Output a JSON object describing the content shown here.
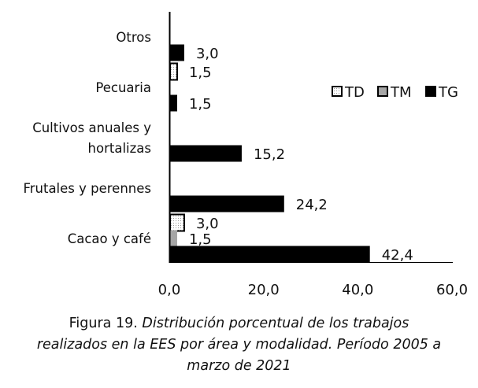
{
  "chart_data": {
    "type": "bar",
    "orientation": "horizontal",
    "categories": [
      "Otros",
      "Pecuaria",
      "Cultivos anuales y hortalizas",
      "Frutales y perennes",
      "Cacao y café"
    ],
    "category_lines": [
      [
        "Otros"
      ],
      [
        "Pecuaria"
      ],
      [
        "Cultivos anuales y",
        "hortalizas"
      ],
      [
        "Frutales y perennes"
      ],
      [
        "Cacao y café"
      ]
    ],
    "series": [
      {
        "name": "TD",
        "values": [
          null,
          1.5,
          null,
          null,
          3.0
        ],
        "labels": [
          "",
          "1,5",
          "",
          "",
          "3,0"
        ],
        "color": "#ffffff",
        "pattern": "dotted"
      },
      {
        "name": "TM",
        "values": [
          null,
          null,
          null,
          null,
          1.5
        ],
        "labels": [
          "",
          "",
          "",
          "",
          "1,5"
        ],
        "color": "#a6a6a6"
      },
      {
        "name": "TG",
        "values": [
          3.0,
          1.5,
          15.2,
          24.2,
          42.4
        ],
        "labels": [
          "3,0",
          "1,5",
          "15,2",
          "24,2",
          "42,4"
        ],
        "color": "#000000"
      }
    ],
    "xlim": [
      0,
      60
    ],
    "xticks": [
      0,
      20,
      40,
      60
    ],
    "xtick_labels": [
      "0,0",
      "20,0",
      "40,0",
      "60,0"
    ],
    "legend": "top-right",
    "grid": false
  },
  "caption": {
    "prefix": "Figura 19.",
    "line1": "Distribución porcentual de los trabajos",
    "line2": "realizados en la EES por área y modalidad. Período 2005 a",
    "line3": "marzo de 2021"
  }
}
